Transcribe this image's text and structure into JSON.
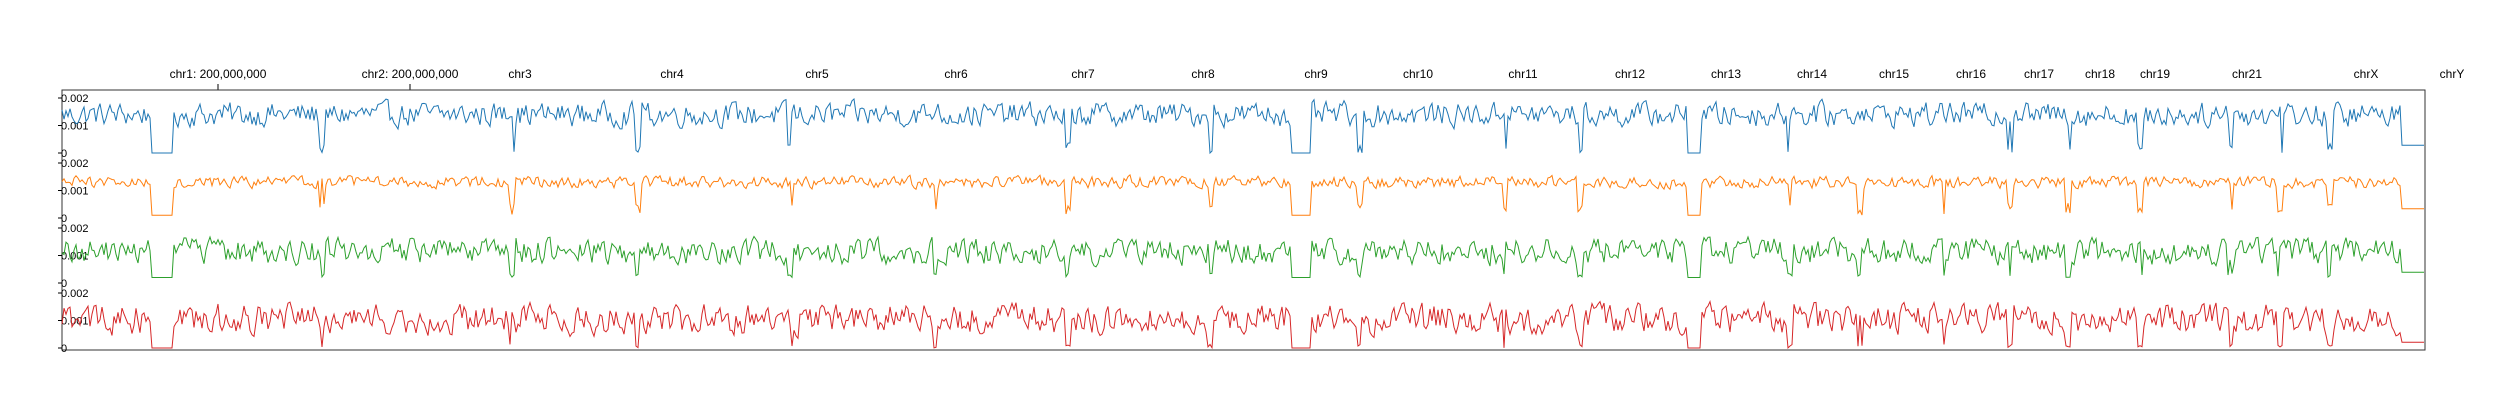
{
  "chart_data": {
    "type": "line",
    "title": "",
    "xlabel": "",
    "ylabel": "",
    "x_axis_labels": [
      {
        "label": "chr1: 200,000,000",
        "has_tick": true
      },
      {
        "label": "chr2: 200,000,000",
        "has_tick": true
      },
      {
        "label": "chr3"
      },
      {
        "label": "chr4"
      },
      {
        "label": "chr5"
      },
      {
        "label": "chr6"
      },
      {
        "label": "chr7"
      },
      {
        "label": "chr8"
      },
      {
        "label": "chr9"
      },
      {
        "label": "chr10"
      },
      {
        "label": "chr11"
      },
      {
        "label": "chr12"
      },
      {
        "label": "chr13"
      },
      {
        "label": "chr14"
      },
      {
        "label": "chr15"
      },
      {
        "label": "chr16"
      },
      {
        "label": "chr17"
      },
      {
        "label": "chr18"
      },
      {
        "label": "chr19"
      },
      {
        "label": "chr21"
      },
      {
        "label": "chrX"
      },
      {
        "label": "chrY"
      }
    ],
    "ylim": [
      0,
      0.002
    ],
    "y_ticks": [
      {
        "value": 0.002,
        "label": "0.002"
      },
      {
        "value": 0.001,
        "label": "0.001"
      },
      {
        "value": 0,
        "label": "0"
      }
    ],
    "series": [
      {
        "color": "#1f77b4",
        "typical_range": [
          0.0008,
          0.002
        ],
        "dips_to": 0
      },
      {
        "color": "#ff7f0e",
        "typical_range": [
          0.001,
          0.0016
        ],
        "dips_to": 0.0001
      },
      {
        "color": "#2ca02c",
        "typical_range": [
          0.0005,
          0.0018
        ],
        "dips_to": 0.0002
      },
      {
        "color": "#d62728",
        "typical_range": [
          0.0003,
          0.0018
        ],
        "dips_to": 0
      }
    ]
  }
}
